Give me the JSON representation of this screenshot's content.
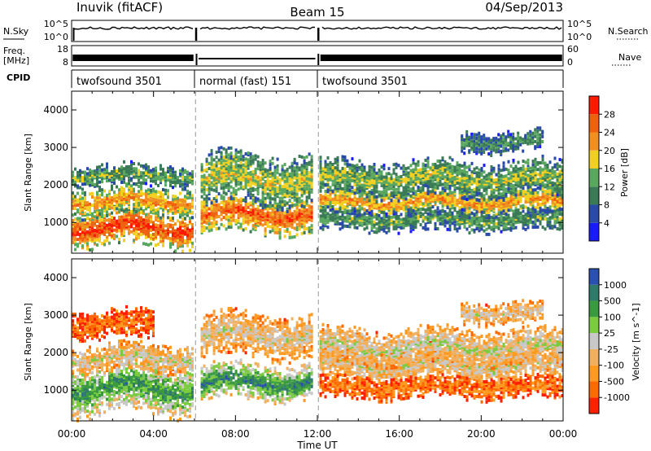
{
  "header": {
    "station": "Inuvik (fitACF)",
    "beam": "Beam 15",
    "date": "04/Sep/2013"
  },
  "strip_labels": {
    "nsky": "N.Sky",
    "freq": "Freq.",
    "freq_unit": "[MHz]",
    "cpid": "CPID",
    "nsearch": "N.Search",
    "nave": "Nave",
    "nsky_ticks": [
      "10^5",
      "10^0"
    ],
    "nsearch_ticks": [
      "10^5",
      "10^0"
    ],
    "freq_ticks": [
      "18",
      "8"
    ],
    "nave_ticks": [
      "60",
      "0"
    ]
  },
  "cpid_segments": [
    {
      "label": "twofsound 3501",
      "start_hour": 0,
      "end_hour": 6
    },
    {
      "label": "normal (fast) 151",
      "start_hour": 6,
      "end_hour": 12
    },
    {
      "label": "twofsound 3501",
      "start_hour": 12,
      "end_hour": 24
    }
  ],
  "colors": {
    "power": [
      "#1a1aff",
      "#2a4aa8",
      "#3a7a56",
      "#5aa860",
      "#f2d020",
      "#f09020",
      "#ef6010",
      "#ff1a00"
    ],
    "velocity": [
      "#ff2000",
      "#ff6a00",
      "#ff9a20",
      "#f0b060",
      "#c8c8c8",
      "#7acb40",
      "#3a9a40",
      "#2f7a6a",
      "#2a50b0"
    ]
  },
  "chart_data": [
    {
      "type": "heatmap",
      "name": "power-panel",
      "xlabel": "",
      "ylabel": "Slant Range [km]",
      "x_ticks": [
        "00:00",
        "04:00",
        "08:00",
        "12:00",
        "16:00",
        "20:00",
        "00:00"
      ],
      "xlim_hours": [
        0,
        24
      ],
      "y_ticks": [
        1000,
        2000,
        3000,
        4000
      ],
      "ylim_km": [
        180,
        4500
      ],
      "colorbar": {
        "label": "Power [dB]",
        "ticks": [
          "4",
          "8",
          "12",
          "16",
          "20",
          "24",
          "28"
        ]
      },
      "bands": [
        {
          "start": 0,
          "end": 6,
          "center": 900,
          "width": 500,
          "level": 0.92
        },
        {
          "start": 0,
          "end": 6,
          "center": 1600,
          "width": 400,
          "level": 0.72
        },
        {
          "start": 0,
          "end": 6,
          "center": 2300,
          "width": 300,
          "level": 0.45
        },
        {
          "start": 6.3,
          "end": 11.8,
          "center": 1250,
          "width": 500,
          "level": 0.85
        },
        {
          "start": 6.3,
          "end": 11.8,
          "center": 2200,
          "width": 700,
          "level": 0.55
        },
        {
          "start": 12.1,
          "end": 24,
          "center": 1600,
          "width": 400,
          "level": 0.7
        },
        {
          "start": 12.1,
          "end": 24,
          "center": 1100,
          "width": 300,
          "level": 0.42
        },
        {
          "start": 12.1,
          "end": 24,
          "center": 2200,
          "width": 500,
          "level": 0.5
        },
        {
          "start": 19,
          "end": 23,
          "center": 3200,
          "width": 300,
          "level": 0.38
        }
      ]
    },
    {
      "type": "heatmap",
      "name": "velocity-panel",
      "xlabel": "Time UT",
      "ylabel": "Slant Range [km]",
      "x_ticks": [
        "00:00",
        "04:00",
        "08:00",
        "12:00",
        "16:00",
        "20:00",
        "00:00"
      ],
      "xlim_hours": [
        0,
        24
      ],
      "y_ticks": [
        1000,
        2000,
        3000,
        4000
      ],
      "ylim_km": [
        180,
        4500
      ],
      "colorbar": {
        "label": "Velocity [m s^-1]",
        "ticks": [
          "1000",
          "500",
          "100",
          "25",
          "-25",
          "-100",
          "-500",
          "-1000"
        ]
      },
      "bands": [
        {
          "start": 0,
          "end": 6,
          "center": 1100,
          "width": 700,
          "level": 0.78
        },
        {
          "start": 0,
          "end": 6,
          "center": 1900,
          "width": 400,
          "level": 0.5
        },
        {
          "start": 0,
          "end": 4,
          "center": 2800,
          "width": 400,
          "level": 0.18
        },
        {
          "start": 6.3,
          "end": 11.8,
          "center": 1250,
          "width": 500,
          "level": 0.82
        },
        {
          "start": 6.3,
          "end": 11.8,
          "center": 2500,
          "width": 600,
          "level": 0.47
        },
        {
          "start": 12.1,
          "end": 24,
          "center": 1700,
          "width": 500,
          "level": 0.47
        },
        {
          "start": 12.1,
          "end": 24,
          "center": 1100,
          "width": 300,
          "level": 0.22
        },
        {
          "start": 12.1,
          "end": 24,
          "center": 2200,
          "width": 500,
          "level": 0.52
        },
        {
          "start": 19,
          "end": 23,
          "center": 3100,
          "width": 300,
          "level": 0.46
        }
      ]
    }
  ]
}
